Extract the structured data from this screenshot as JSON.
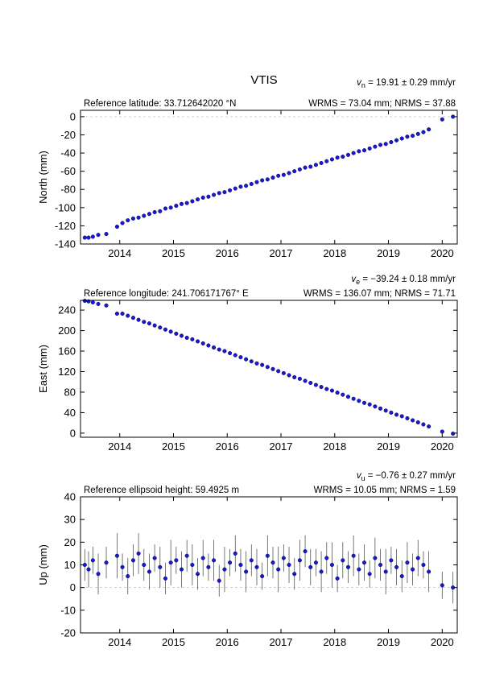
{
  "title": "VTIS",
  "chart_data": [
    {
      "type": "scatter",
      "reference": "Reference latitude: 33.712642020 °N",
      "velocity": {
        "symbol": "v",
        "subscript": "n",
        "text": " = 19.91 ± 0.29 mm/yr"
      },
      "stats": "WRMS = 73.04 mm; NRMS = 37.88",
      "ylabel": "North (mm)",
      "color": "#1a1acc",
      "zero_line": true,
      "xlim": [
        2013.27,
        2020.28
      ],
      "xticks": [
        2014,
        2015,
        2016,
        2017,
        2018,
        2019,
        2020
      ],
      "ylim": [
        -140,
        7
      ],
      "yticks": [
        0,
        -20,
        -40,
        -60,
        -80,
        -100,
        -120,
        -140
      ],
      "x": [
        2013.35,
        2013.42,
        2013.5,
        2013.6,
        2013.75,
        2013.95,
        2014.05,
        2014.15,
        2014.25,
        2014.35,
        2014.45,
        2014.55,
        2014.65,
        2014.75,
        2014.85,
        2014.95,
        2015.05,
        2015.15,
        2015.25,
        2015.35,
        2015.45,
        2015.55,
        2015.65,
        2015.75,
        2015.85,
        2015.95,
        2016.05,
        2016.15,
        2016.25,
        2016.35,
        2016.45,
        2016.55,
        2016.65,
        2016.75,
        2016.85,
        2016.95,
        2017.05,
        2017.15,
        2017.25,
        2017.35,
        2017.45,
        2017.55,
        2017.65,
        2017.75,
        2017.85,
        2017.95,
        2018.05,
        2018.15,
        2018.25,
        2018.35,
        2018.45,
        2018.55,
        2018.65,
        2018.75,
        2018.85,
        2018.95,
        2019.05,
        2019.15,
        2019.25,
        2019.35,
        2019.45,
        2019.55,
        2019.65,
        2019.75,
        2020.0,
        2020.2
      ],
      "values": [
        -133,
        -133,
        -132,
        -130,
        -129,
        -121,
        -117,
        -114,
        -112,
        -111,
        -109,
        -107,
        -105,
        -104,
        -101,
        -100,
        -98,
        -96,
        -95,
        -93,
        -91,
        -89,
        -88,
        -86,
        -84,
        -83,
        -81,
        -79,
        -77,
        -76,
        -74,
        -72,
        -70,
        -69,
        -67,
        -65,
        -64,
        -62,
        -60,
        -58,
        -56,
        -55,
        -53,
        -51,
        -49,
        -47,
        -45,
        -44,
        -42,
        -40,
        -38,
        -37,
        -35,
        -33,
        -31,
        -30,
        -28,
        -26,
        -24,
        -22,
        -21,
        -19,
        -17,
        -14,
        -3,
        0
      ]
    },
    {
      "type": "scatter",
      "reference": "Reference longitude: 241.706171767° E",
      "velocity": {
        "symbol": "v",
        "subscript": "e",
        "text": " = −39.24 ± 0.18 mm/yr"
      },
      "stats": "WRMS = 136.07 mm; NRMS = 71.71",
      "ylabel": "East (mm)",
      "color": "#1a1acc",
      "zero_line": false,
      "xlim": [
        2013.27,
        2020.28
      ],
      "xticks": [
        2014,
        2015,
        2016,
        2017,
        2018,
        2019,
        2020
      ],
      "ylim": [
        -8,
        259
      ],
      "yticks": [
        0,
        40,
        80,
        120,
        160,
        200,
        240
      ],
      "x": [
        2013.35,
        2013.42,
        2013.5,
        2013.6,
        2013.75,
        2013.95,
        2014.05,
        2014.15,
        2014.25,
        2014.35,
        2014.45,
        2014.55,
        2014.65,
        2014.75,
        2014.85,
        2014.95,
        2015.05,
        2015.15,
        2015.25,
        2015.35,
        2015.45,
        2015.55,
        2015.65,
        2015.75,
        2015.85,
        2015.95,
        2016.05,
        2016.15,
        2016.25,
        2016.35,
        2016.45,
        2016.55,
        2016.65,
        2016.75,
        2016.85,
        2016.95,
        2017.05,
        2017.15,
        2017.25,
        2017.35,
        2017.45,
        2017.55,
        2017.65,
        2017.75,
        2017.85,
        2017.95,
        2018.05,
        2018.15,
        2018.25,
        2018.35,
        2018.45,
        2018.55,
        2018.65,
        2018.75,
        2018.85,
        2018.95,
        2019.05,
        2019.15,
        2019.25,
        2019.35,
        2019.45,
        2019.55,
        2019.65,
        2019.75,
        2020.0,
        2020.2
      ],
      "values": [
        258,
        257,
        255,
        252,
        249,
        233,
        233,
        229,
        225,
        221,
        217,
        214,
        210,
        206,
        202,
        198,
        194,
        190,
        186,
        183,
        179,
        175,
        171,
        167,
        163,
        160,
        156,
        152,
        148,
        144,
        140,
        136,
        133,
        129,
        125,
        121,
        117,
        113,
        109,
        106,
        102,
        98,
        94,
        90,
        86,
        83,
        79,
        75,
        71,
        67,
        63,
        59,
        56,
        52,
        48,
        44,
        40,
        36,
        33,
        29,
        25,
        21,
        17,
        13,
        3,
        -1
      ]
    },
    {
      "type": "scatter",
      "reference": "Reference ellipsoid height: 59.4925 m",
      "velocity": {
        "symbol": "v",
        "subscript": "u",
        "text": " = −0.76 ± 0.27 mm/yr"
      },
      "stats": "WRMS = 10.05 mm; NRMS = 1.59",
      "ylabel": "Up (mm)",
      "color": "#1a1acc",
      "error_color": "#555555",
      "zero_line": true,
      "xlim": [
        2013.27,
        2020.28
      ],
      "xticks": [
        2014,
        2015,
        2016,
        2017,
        2018,
        2019,
        2020
      ],
      "ylim": [
        -20,
        40
      ],
      "yticks": [
        -20,
        -10,
        0,
        10,
        20,
        30,
        40
      ],
      "x": [
        2013.35,
        2013.42,
        2013.5,
        2013.6,
        2013.75,
        2013.95,
        2014.05,
        2014.15,
        2014.25,
        2014.35,
        2014.45,
        2014.55,
        2014.65,
        2014.75,
        2014.85,
        2014.95,
        2015.05,
        2015.15,
        2015.25,
        2015.35,
        2015.45,
        2015.55,
        2015.65,
        2015.75,
        2015.85,
        2015.95,
        2016.05,
        2016.15,
        2016.25,
        2016.35,
        2016.45,
        2016.55,
        2016.65,
        2016.75,
        2016.85,
        2016.95,
        2017.05,
        2017.15,
        2017.25,
        2017.35,
        2017.45,
        2017.55,
        2017.65,
        2017.75,
        2017.85,
        2017.95,
        2018.05,
        2018.15,
        2018.25,
        2018.35,
        2018.45,
        2018.55,
        2018.65,
        2018.75,
        2018.85,
        2018.95,
        2019.05,
        2019.15,
        2019.25,
        2019.35,
        2019.45,
        2019.55,
        2019.65,
        2019.75,
        2020.0,
        2020.2
      ],
      "values": [
        10,
        8,
        12,
        6,
        11,
        14,
        9,
        5,
        12,
        15,
        10,
        7,
        13,
        9,
        4,
        11,
        12,
        8,
        14,
        10,
        6,
        13,
        9,
        12,
        3,
        8,
        11,
        15,
        10,
        7,
        12,
        9,
        5,
        14,
        11,
        8,
        13,
        10,
        6,
        12,
        16,
        9,
        11,
        7,
        13,
        10,
        4,
        12,
        9,
        14,
        8,
        11,
        6,
        13,
        10,
        7,
        12,
        9,
        5,
        11,
        8,
        13,
        10,
        7,
        1,
        0
      ],
      "errors": [
        7,
        8,
        6,
        9,
        7,
        10,
        6,
        8,
        7,
        9,
        7,
        8,
        6,
        9,
        7,
        10,
        6,
        8,
        7,
        9,
        7,
        8,
        6,
        9,
        7,
        10,
        6,
        8,
        7,
        9,
        7,
        8,
        6,
        9,
        7,
        10,
        6,
        8,
        7,
        9,
        7,
        8,
        6,
        9,
        7,
        10,
        6,
        8,
        7,
        9,
        7,
        8,
        6,
        9,
        7,
        10,
        6,
        8,
        7,
        9,
        7,
        8,
        6,
        9,
        6,
        7
      ]
    }
  ]
}
